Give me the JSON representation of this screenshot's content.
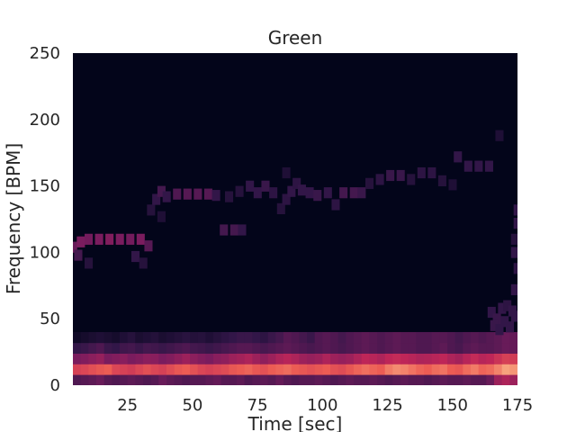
{
  "chart_data": {
    "type": "heatmap",
    "title": "Green",
    "xlabel": "Time [sec]",
    "ylabel": "Frequency [BPM]",
    "xlim": [
      4,
      175
    ],
    "ylim": [
      0,
      250
    ],
    "xticks": [
      25,
      50,
      75,
      100,
      125,
      150,
      175
    ],
    "yticks": [
      0,
      50,
      100,
      150,
      200,
      250
    ],
    "grid": false,
    "colormap": "rocket",
    "background_color": "#03051A",
    "bin_width_sec": 3,
    "bin_height_bpm": 8,
    "tracks": [
      {
        "name": "",
        "points": [
          [
            4,
            104,
            0.35
          ],
          [
            7,
            108,
            0.4
          ],
          [
            10,
            110,
            0.38
          ],
          [
            14,
            110,
            0.4
          ],
          [
            18,
            110,
            0.42
          ],
          [
            22,
            110,
            0.4
          ],
          [
            26,
            110,
            0.38
          ],
          [
            30,
            110,
            0.4
          ],
          [
            33,
            105,
            0.3
          ],
          [
            6,
            98,
            0.25
          ],
          [
            10,
            92,
            0.15
          ],
          [
            28,
            97,
            0.2
          ],
          [
            31,
            92,
            0.15
          ]
        ]
      },
      {
        "name": "",
        "points": [
          [
            34,
            132,
            0.15
          ],
          [
            36,
            140,
            0.2
          ],
          [
            38,
            146,
            0.25
          ],
          [
            40,
            142,
            0.2
          ],
          [
            44,
            144,
            0.28
          ],
          [
            48,
            144,
            0.3
          ],
          [
            52,
            144,
            0.3
          ],
          [
            56,
            144,
            0.3
          ],
          [
            59,
            143,
            0.2
          ],
          [
            38,
            127,
            0.12
          ]
        ]
      },
      {
        "name": "",
        "points": [
          [
            62,
            117,
            0.25
          ],
          [
            66,
            117,
            0.25
          ],
          [
            69,
            117,
            0.2
          ],
          [
            64,
            142,
            0.15
          ],
          [
            68,
            146,
            0.15
          ]
        ]
      },
      {
        "name": "",
        "points": [
          [
            72,
            150,
            0.2
          ],
          [
            75,
            145,
            0.2
          ],
          [
            78,
            150,
            0.22
          ],
          [
            81,
            145,
            0.18
          ],
          [
            84,
            133,
            0.15
          ],
          [
            86,
            140,
            0.18
          ],
          [
            88,
            146,
            0.2
          ],
          [
            90,
            152,
            0.18
          ],
          [
            92,
            147,
            0.2
          ],
          [
            95,
            145,
            0.2
          ],
          [
            98,
            143,
            0.22
          ],
          [
            102,
            145,
            0.2
          ],
          [
            105,
            136,
            0.18
          ],
          [
            108,
            145,
            0.25
          ],
          [
            112,
            145,
            0.25
          ],
          [
            115,
            145,
            0.22
          ],
          [
            86,
            160,
            0.12
          ]
        ]
      },
      {
        "name": "",
        "points": [
          [
            118,
            152,
            0.15
          ],
          [
            122,
            155,
            0.18
          ],
          [
            126,
            158,
            0.22
          ],
          [
            130,
            158,
            0.22
          ],
          [
            134,
            155,
            0.15
          ],
          [
            138,
            160,
            0.18
          ],
          [
            142,
            160,
            0.18
          ],
          [
            146,
            154,
            0.15
          ],
          [
            150,
            151,
            0.12
          ],
          [
            152,
            172,
            0.2
          ],
          [
            156,
            165,
            0.2
          ],
          [
            160,
            165,
            0.2
          ],
          [
            164,
            165,
            0.2
          ],
          [
            168,
            188,
            0.12
          ]
        ]
      },
      {
        "name": "",
        "points": [
          [
            165,
            55,
            0.2
          ],
          [
            167,
            50,
            0.22
          ],
          [
            169,
            58,
            0.2
          ],
          [
            171,
            60,
            0.18
          ],
          [
            173,
            56,
            0.2
          ],
          [
            166,
            45,
            0.22
          ],
          [
            168,
            42,
            0.2
          ],
          [
            170,
            48,
            0.2
          ],
          [
            172,
            44,
            0.2
          ],
          [
            174,
            52,
            0.2
          ],
          [
            174,
            72,
            0.2
          ],
          [
            175,
            88,
            0.18
          ],
          [
            174,
            100,
            0.2
          ],
          [
            175,
            122,
            0.2
          ],
          [
            175,
            132,
            0.2
          ],
          [
            174,
            110,
            0.15
          ]
        ]
      }
    ],
    "low_band": {
      "rows": [
        {
          "freq": 4,
          "values": [
            0.28,
            0.3,
            0.32,
            0.35,
            0.3,
            0.28,
            0.3,
            0.32,
            0.3,
            0.28,
            0.3,
            0.35,
            0.32,
            0.3,
            0.28,
            0.3,
            0.3,
            0.32,
            0.34,
            0.3,
            0.3,
            0.32,
            0.28,
            0.3,
            0.32,
            0.3,
            0.34,
            0.3,
            0.28,
            0.3,
            0.3,
            0.32,
            0.3,
            0.28,
            0.3,
            0.32,
            0.3,
            0.3,
            0.32,
            0.3,
            0.28,
            0.3,
            0.32,
            0.3,
            0.3,
            0.28,
            0.3,
            0.32,
            0.3,
            0.3,
            0.32,
            0.3,
            0.3,
            0.35,
            0.5,
            0.55,
            0.5,
            0.45
          ]
        },
        {
          "freq": 12,
          "values": [
            0.7,
            0.72,
            0.75,
            0.78,
            0.8,
            0.72,
            0.7,
            0.68,
            0.72,
            0.75,
            0.72,
            0.7,
            0.74,
            0.78,
            0.8,
            0.76,
            0.72,
            0.7,
            0.72,
            0.74,
            0.78,
            0.8,
            0.82,
            0.78,
            0.76,
            0.8,
            0.82,
            0.84,
            0.8,
            0.78,
            0.76,
            0.78,
            0.8,
            0.76,
            0.74,
            0.78,
            0.82,
            0.85,
            0.82,
            0.8,
            0.88,
            0.92,
            0.9,
            0.86,
            0.82,
            0.8,
            0.84,
            0.86,
            0.8,
            0.78,
            0.84,
            0.88,
            0.82,
            0.84,
            0.9,
            0.98,
            0.95,
            0.9
          ]
        },
        {
          "freq": 20,
          "values": [
            0.4,
            0.42,
            0.45,
            0.48,
            0.4,
            0.42,
            0.44,
            0.4,
            0.42,
            0.45,
            0.44,
            0.4,
            0.42,
            0.46,
            0.5,
            0.45,
            0.42,
            0.4,
            0.44,
            0.46,
            0.5,
            0.52,
            0.55,
            0.5,
            0.46,
            0.5,
            0.55,
            0.58,
            0.55,
            0.5,
            0.48,
            0.5,
            0.55,
            0.5,
            0.48,
            0.5,
            0.55,
            0.6,
            0.58,
            0.55,
            0.6,
            0.62,
            0.6,
            0.58,
            0.55,
            0.56,
            0.58,
            0.6,
            0.55,
            0.52,
            0.58,
            0.62,
            0.58,
            0.6,
            0.65,
            0.7,
            0.68,
            0.62
          ]
        },
        {
          "freq": 28,
          "values": [
            0.2,
            0.22,
            0.25,
            0.28,
            0.22,
            0.2,
            0.24,
            0.25,
            0.22,
            0.25,
            0.24,
            0.22,
            0.24,
            0.26,
            0.28,
            0.25,
            0.24,
            0.22,
            0.24,
            0.26,
            0.28,
            0.3,
            0.3,
            0.28,
            0.26,
            0.28,
            0.3,
            0.32,
            0.3,
            0.28,
            0.26,
            0.28,
            0.3,
            0.28,
            0.26,
            0.28,
            0.3,
            0.32,
            0.3,
            0.28,
            0.3,
            0.32,
            0.3,
            0.3,
            0.28,
            0.28,
            0.3,
            0.32,
            0.28,
            0.26,
            0.3,
            0.32,
            0.3,
            0.3,
            0.32,
            0.35,
            0.34,
            0.32
          ]
        },
        {
          "freq": 36,
          "values": [
            0.05,
            0.08,
            0.1,
            0.12,
            0.1,
            0.08,
            0.12,
            0.15,
            0.1,
            0.12,
            0.14,
            0.1,
            0.12,
            0.14,
            0.16,
            0.14,
            0.15,
            0.12,
            0.15,
            0.18,
            0.2,
            0.22,
            0.22,
            0.2,
            0.18,
            0.22,
            0.25,
            0.3,
            0.28,
            0.25,
            0.22,
            0.28,
            0.3,
            0.28,
            0.25,
            0.28,
            0.3,
            0.32,
            0.3,
            0.28,
            0.3,
            0.32,
            0.3,
            0.3,
            0.28,
            0.28,
            0.3,
            0.3,
            0.28,
            0.25,
            0.28,
            0.3,
            0.28,
            0.3,
            0.32,
            0.35,
            0.34,
            0.32
          ]
        }
      ]
    }
  }
}
